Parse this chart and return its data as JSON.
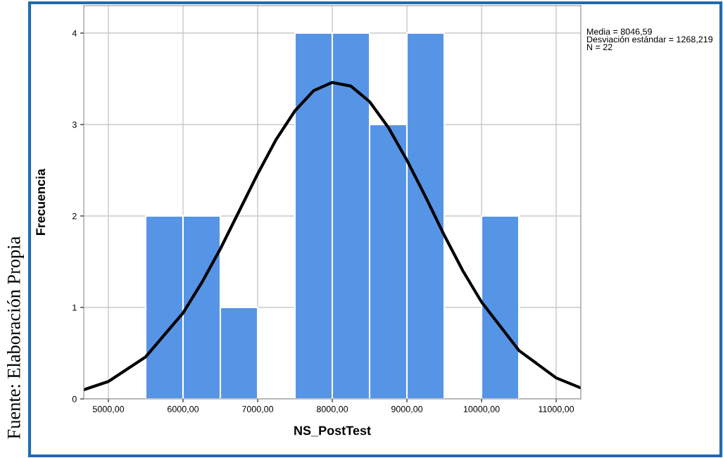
{
  "chart_data": {
    "type": "histogram",
    "xlabel": "NS_PostTest",
    "ylabel": "Frecuencia",
    "bins": [
      5500,
      6000,
      6500,
      7000,
      7500,
      8000,
      8500,
      9000,
      9500,
      10000,
      10500
    ],
    "values": [
      2,
      2,
      1,
      0,
      4,
      4,
      3,
      4,
      0,
      2
    ],
    "color": "#5694e6",
    "series": [
      {
        "type": "line",
        "color": "#000000",
        "x": [
          4670,
          5000,
          5500,
          6000,
          6250,
          6500,
          6750,
          7000,
          7250,
          7500,
          7750,
          8000,
          8250,
          8500,
          8750,
          9000,
          9250,
          9500,
          9750,
          10000,
          10500,
          11000,
          11330
        ],
        "values": [
          0.1,
          0.19,
          0.46,
          0.94,
          1.27,
          1.64,
          2.05,
          2.46,
          2.84,
          3.15,
          3.37,
          3.46,
          3.42,
          3.25,
          2.97,
          2.61,
          2.21,
          1.79,
          1.4,
          1.06,
          0.53,
          0.23,
          0.12
        ]
      }
    ],
    "xlim": [
      4670,
      11330
    ],
    "ylim": [
      0,
      4.3
    ],
    "xticks": [
      {
        "value": 5000,
        "label": "5000,00"
      },
      {
        "value": 6000,
        "label": "6000,00"
      },
      {
        "value": 7000,
        "label": "7000,00"
      },
      {
        "value": 8000,
        "label": "8000,00"
      },
      {
        "value": 9000,
        "label": "9000,00"
      },
      {
        "value": 10000,
        "label": "10000,00"
      },
      {
        "value": 11000,
        "label": "11000,00"
      }
    ],
    "yticks": [
      0,
      1,
      2,
      3,
      4
    ],
    "grid": true,
    "annotations": [
      "Media = 8046,59",
      "Desviación estándar = 1268,219",
      "N = 22",
      "Fuente: Elaboración Propia"
    ]
  }
}
